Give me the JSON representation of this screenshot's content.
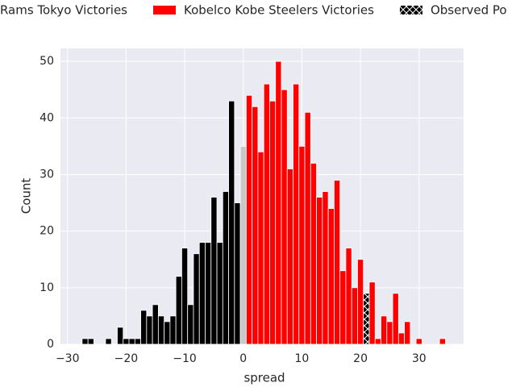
{
  "chart_data": {
    "type": "histogram",
    "x_label": "spread",
    "y_label": "Count",
    "bins": [
      -27.5,
      -26.5,
      -25.5,
      -24.5,
      -23.5,
      -22.5,
      -21.5,
      -20.5,
      -19.5,
      -18.5,
      -17.5,
      -16.5,
      -15.5,
      -14.5,
      -13.5,
      -12.5,
      -11.5,
      -10.5,
      -9.5,
      -8.5,
      -7.5,
      -6.5,
      -5.5,
      -4.5,
      -3.5,
      -2.5,
      -1.5,
      -0.5,
      0.5,
      1.5,
      2.5,
      3.5,
      4.5,
      5.5,
      6.5,
      7.5,
      8.5,
      9.5,
      10.5,
      11.5,
      12.5,
      13.5,
      14.5,
      15.5,
      16.5,
      17.5,
      18.5,
      19.5,
      20.5,
      21.5,
      22.5,
      23.5,
      24.5,
      25.5,
      26.5,
      27.5,
      28.5,
      29.5,
      30.5,
      31.5,
      32.5,
      33.5,
      34.5
    ],
    "series": [
      {
        "name": "Rams Tokyo Victories",
        "color": "#000000",
        "values": [
          1,
          1,
          0,
          0,
          1,
          0,
          3,
          1,
          1,
          1,
          6,
          5,
          7,
          5,
          4,
          5,
          12,
          17,
          7,
          16,
          18,
          18,
          26,
          18,
          27,
          43,
          25,
          null,
          null,
          null,
          null,
          null,
          null,
          null,
          null,
          null,
          null,
          null,
          null,
          null,
          null,
          null,
          null,
          null,
          null,
          null,
          null,
          null,
          null,
          null,
          null,
          null,
          null,
          null,
          null,
          null,
          null,
          null,
          null,
          null,
          null,
          null
        ]
      },
      {
        "color": "#c8c8c8",
        "values": [
          null,
          null,
          null,
          null,
          null,
          null,
          null,
          null,
          null,
          null,
          null,
          null,
          null,
          null,
          null,
          null,
          null,
          null,
          null,
          null,
          null,
          null,
          null,
          null,
          null,
          null,
          null,
          35,
          null,
          null,
          null,
          null,
          null,
          null,
          null,
          null,
          null,
          null,
          null,
          null,
          null,
          null,
          null,
          null,
          null,
          null,
          null,
          null,
          null,
          null,
          null,
          null,
          null,
          null,
          null,
          null,
          null,
          null,
          null,
          null,
          null,
          null
        ]
      },
      {
        "name": "Kobelco Kobe Steelers Victories",
        "color": "#ff0000",
        "values": [
          null,
          null,
          null,
          null,
          null,
          null,
          null,
          null,
          null,
          null,
          null,
          null,
          null,
          null,
          null,
          null,
          null,
          null,
          null,
          null,
          null,
          null,
          null,
          null,
          null,
          null,
          null,
          null,
          44,
          42,
          34,
          46,
          43,
          50,
          45,
          31,
          46,
          35,
          41,
          32,
          26,
          27,
          24,
          29,
          13,
          17,
          10,
          15,
          null,
          11,
          1,
          5,
          4,
          9,
          2,
          4,
          0,
          1,
          0,
          0,
          0,
          1
        ]
      },
      {
        "name": "Observed Po",
        "color": "#000000",
        "hatch": true,
        "values": [
          null,
          null,
          null,
          null,
          null,
          null,
          null,
          null,
          null,
          null,
          null,
          null,
          null,
          null,
          null,
          null,
          null,
          null,
          null,
          null,
          null,
          null,
          null,
          null,
          null,
          null,
          null,
          null,
          null,
          null,
          null,
          null,
          null,
          null,
          null,
          null,
          null,
          null,
          null,
          null,
          null,
          null,
          null,
          null,
          null,
          null,
          null,
          null,
          9,
          null,
          null,
          null,
          null,
          null,
          null,
          null,
          null,
          null,
          null,
          null,
          null,
          null
        ]
      }
    ],
    "xlim": [
      -31.2,
      37.6
    ],
    "ylim": [
      0,
      52.3
    ],
    "xticks": [
      {
        "value": -30,
        "label": "−30"
      },
      {
        "value": -20,
        "label": "−20"
      },
      {
        "value": -10,
        "label": "−10"
      },
      0,
      10,
      20,
      30
    ],
    "yticks": [
      0,
      10,
      20,
      30,
      40,
      50
    ],
    "grid": true,
    "legend": "top"
  }
}
